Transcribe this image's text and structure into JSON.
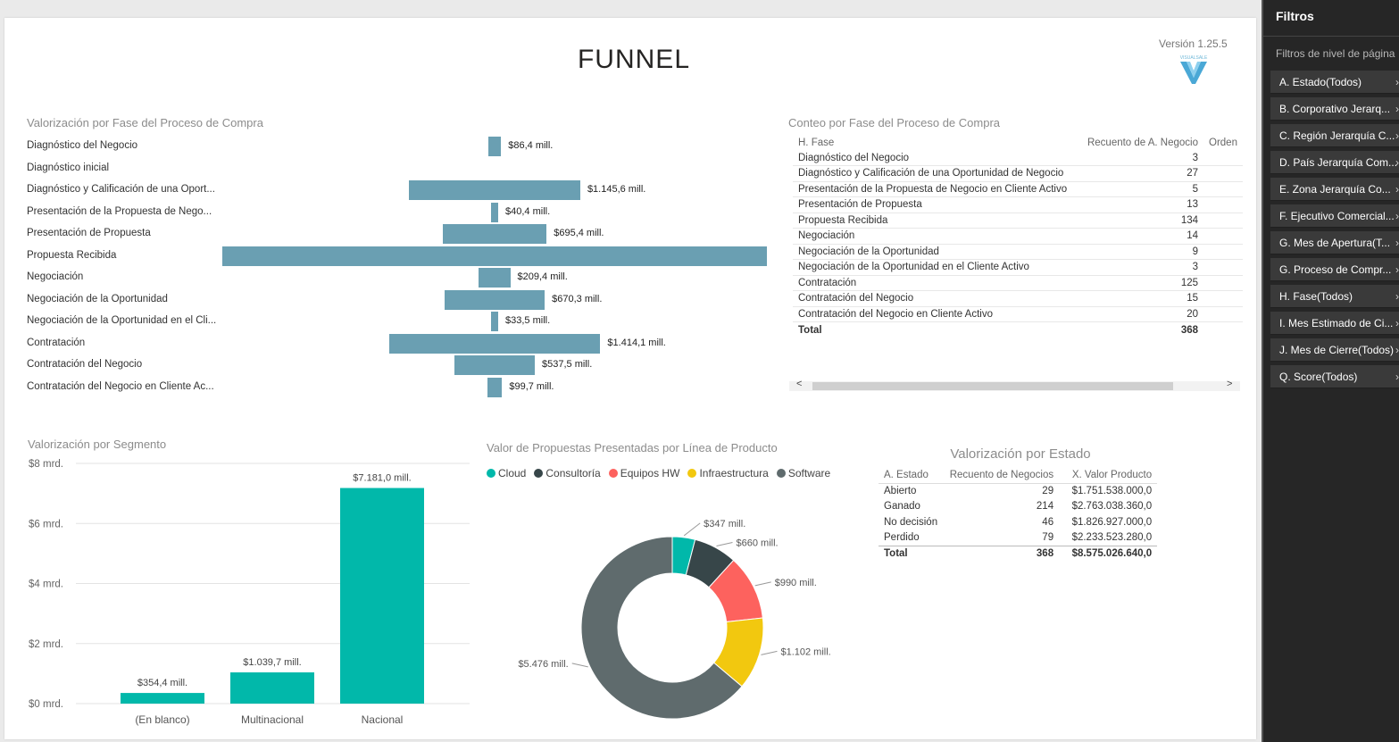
{
  "page": {
    "title": "FUNNEL",
    "version": "Versión 1.25.5",
    "logo_text": "VISUALSALE"
  },
  "funnel": {
    "title": "Valorización por Fase del Proceso de Compra",
    "rows": [
      {
        "label": "Diagnóstico del Negocio",
        "value_label": "$86,4 mill."
      },
      {
        "label": "Diagnóstico inicial",
        "value_label": ""
      },
      {
        "label": "Diagnóstico y Calificación de una Oport...",
        "value_label": "$1.145,6 mill."
      },
      {
        "label": "Presentación de la Propuesta de Nego...",
        "value_label": "$40,4 mill."
      },
      {
        "label": "Presentación de Propuesta",
        "value_label": "$695,4 mill."
      },
      {
        "label": "Propuesta Recibida",
        "value_label": ""
      },
      {
        "label": "Negociación",
        "value_label": "$209,4 mill."
      },
      {
        "label": "Negociación de la Oportunidad",
        "value_label": "$670,3 mill."
      },
      {
        "label": "Negociación de la Oportunidad en el Cli...",
        "value_label": "$33,5 mill."
      },
      {
        "label": "Contratación",
        "value_label": "$1.414,1 mill."
      },
      {
        "label": "Contratación del Negocio",
        "value_label": "$537,5 mill."
      },
      {
        "label": "Contratación del Negocio en Cliente Ac...",
        "value_label": "$99,7 mill."
      }
    ]
  },
  "chart_data": [
    {
      "type": "bar",
      "orientation": "horizontal-funnel",
      "title": "Valorización por Fase del Proceso de Compra",
      "categories": [
        "Diagnóstico del Negocio",
        "Diagnóstico inicial",
        "Diagnóstico y Calificación de una Oport...",
        "Presentación de la Propuesta de Nego...",
        "Presentación de Propuesta",
        "Propuesta Recibida",
        "Negociación",
        "Negociación de la Oportunidad",
        "Negociación de la Oportunidad en el Cli...",
        "Contratación",
        "Contratación del Negocio",
        "Contratación del Negocio en Cliente Ac..."
      ],
      "values": [
        86.4,
        0,
        1145.6,
        40.4,
        695.4,
        3642.0,
        209.4,
        670.3,
        33.5,
        1414.1,
        537.5,
        99.7
      ],
      "unit": "mill."
    },
    {
      "type": "bar",
      "title": "Valorización por Segmento",
      "categories": [
        "(En blanco)",
        "Multinacional",
        "Nacional"
      ],
      "values": [
        354.4,
        1039.7,
        7181.0
      ],
      "value_labels": [
        "$354,4 mill.",
        "$1.039,7 mill.",
        "$7.181,0 mill."
      ],
      "y_ticks": [
        "$0 mrd.",
        "$2 mrd.",
        "$4 mrd.",
        "$6 mrd.",
        "$8 mrd."
      ],
      "ylim": [
        0,
        8000
      ],
      "color": "#01b8aa"
    },
    {
      "type": "pie",
      "donut": true,
      "title": "Valor de Propuestas Presentadas por Línea de Producto",
      "categories": [
        "Cloud",
        "Consultoría",
        "Equipos HW",
        "Infraestructura",
        "Software"
      ],
      "values": [
        347,
        660,
        990,
        1102,
        5476
      ],
      "value_labels": [
        "$347 mill.",
        "$660 mill.",
        "$990 mill.",
        "$1.102 mill.",
        "$5.476 mill."
      ],
      "colors": [
        "#01b8aa",
        "#374649",
        "#fd625e",
        "#f2c80f",
        "#5f6b6d"
      ]
    }
  ],
  "segment": {
    "title": "Valorización por Segmento",
    "y_ticks": [
      "$8 mrd.",
      "$6 mrd.",
      "$4 mrd.",
      "$2 mrd.",
      "$0 mrd."
    ],
    "categories": [
      "(En blanco)",
      "Multinacional",
      "Nacional"
    ],
    "value_labels": [
      "$354,4 mill.",
      "$1.039,7 mill.",
      "$7.181,0 mill."
    ]
  },
  "donut": {
    "title": "Valor de Propuestas Presentadas por Línea de Producto",
    "legend": [
      "Cloud",
      "Consultoría",
      "Equipos HW",
      "Infraestructura",
      "Software"
    ],
    "colors": [
      "#01b8aa",
      "#374649",
      "#fd625e",
      "#f2c80f",
      "#5f6b6d"
    ],
    "labels": [
      "$347 mill.",
      "$660 mill.",
      "$990 mill.",
      "$1.102 mill.",
      "$5.476 mill."
    ]
  },
  "count_table": {
    "title": "Conteo por Fase del Proceso de Compra",
    "headers": [
      "H. Fase",
      "Recuento de A. Negocio",
      "Orden"
    ],
    "rows": [
      {
        "fase": "Diagnóstico del Negocio",
        "count": "3"
      },
      {
        "fase": "Diagnóstico y Calificación de una Oportunidad de Negocio",
        "count": "27"
      },
      {
        "fase": "Presentación de la Propuesta de Negocio en Cliente Activo",
        "count": "5"
      },
      {
        "fase": "Presentación de Propuesta",
        "count": "13"
      },
      {
        "fase": "Propuesta Recibida",
        "count": "134"
      },
      {
        "fase": "Negociación",
        "count": "14"
      },
      {
        "fase": "Negociación de la Oportunidad",
        "count": "9"
      },
      {
        "fase": "Negociación de la Oportunidad en el Cliente Activo",
        "count": "3"
      },
      {
        "fase": "Contratación",
        "count": "125"
      },
      {
        "fase": "Contratación del Negocio",
        "count": "15"
      },
      {
        "fase": "Contratación del Negocio en Cliente Activo",
        "count": "20"
      }
    ],
    "total_label": "Total",
    "total_count": "368",
    "scroll_left": "<",
    "scroll_right": ">"
  },
  "estado_table": {
    "title": "Valorización por Estado",
    "headers": [
      "A. Estado",
      "Recuento de Negocios",
      "X. Valor Producto"
    ],
    "rows": [
      {
        "estado": "Abierto",
        "count": "29",
        "valor": "$1.751.538.000,0"
      },
      {
        "estado": "Ganado",
        "count": "214",
        "valor": "$2.763.038.360,0"
      },
      {
        "estado": "No decisión",
        "count": "46",
        "valor": "$1.826.927.000,0"
      },
      {
        "estado": "Perdido",
        "count": "79",
        "valor": "$2.233.523.280,0"
      }
    ],
    "total_label": "Total",
    "total_count": "368",
    "total_valor": "$8.575.026.640,0"
  },
  "filters": {
    "title": "Filtros",
    "subtitle": "Filtros de nivel de página",
    "chevron": "›",
    "items": [
      "A. Estado(Todos)",
      "B. Corporativo Jerarq...",
      "C. Región Jerarquía C...",
      "D. País Jerarquía Com...",
      "E. Zona Jerarquía Co...",
      "F. Ejecutivo Comercial...",
      "G. Mes de Apertura(T...",
      "G. Proceso de Compr...",
      "H. Fase(Todos)",
      "I. Mes Estimado de Ci...",
      "J. Mes de Cierre(Todos)",
      "Q. Score(Todos)"
    ]
  }
}
